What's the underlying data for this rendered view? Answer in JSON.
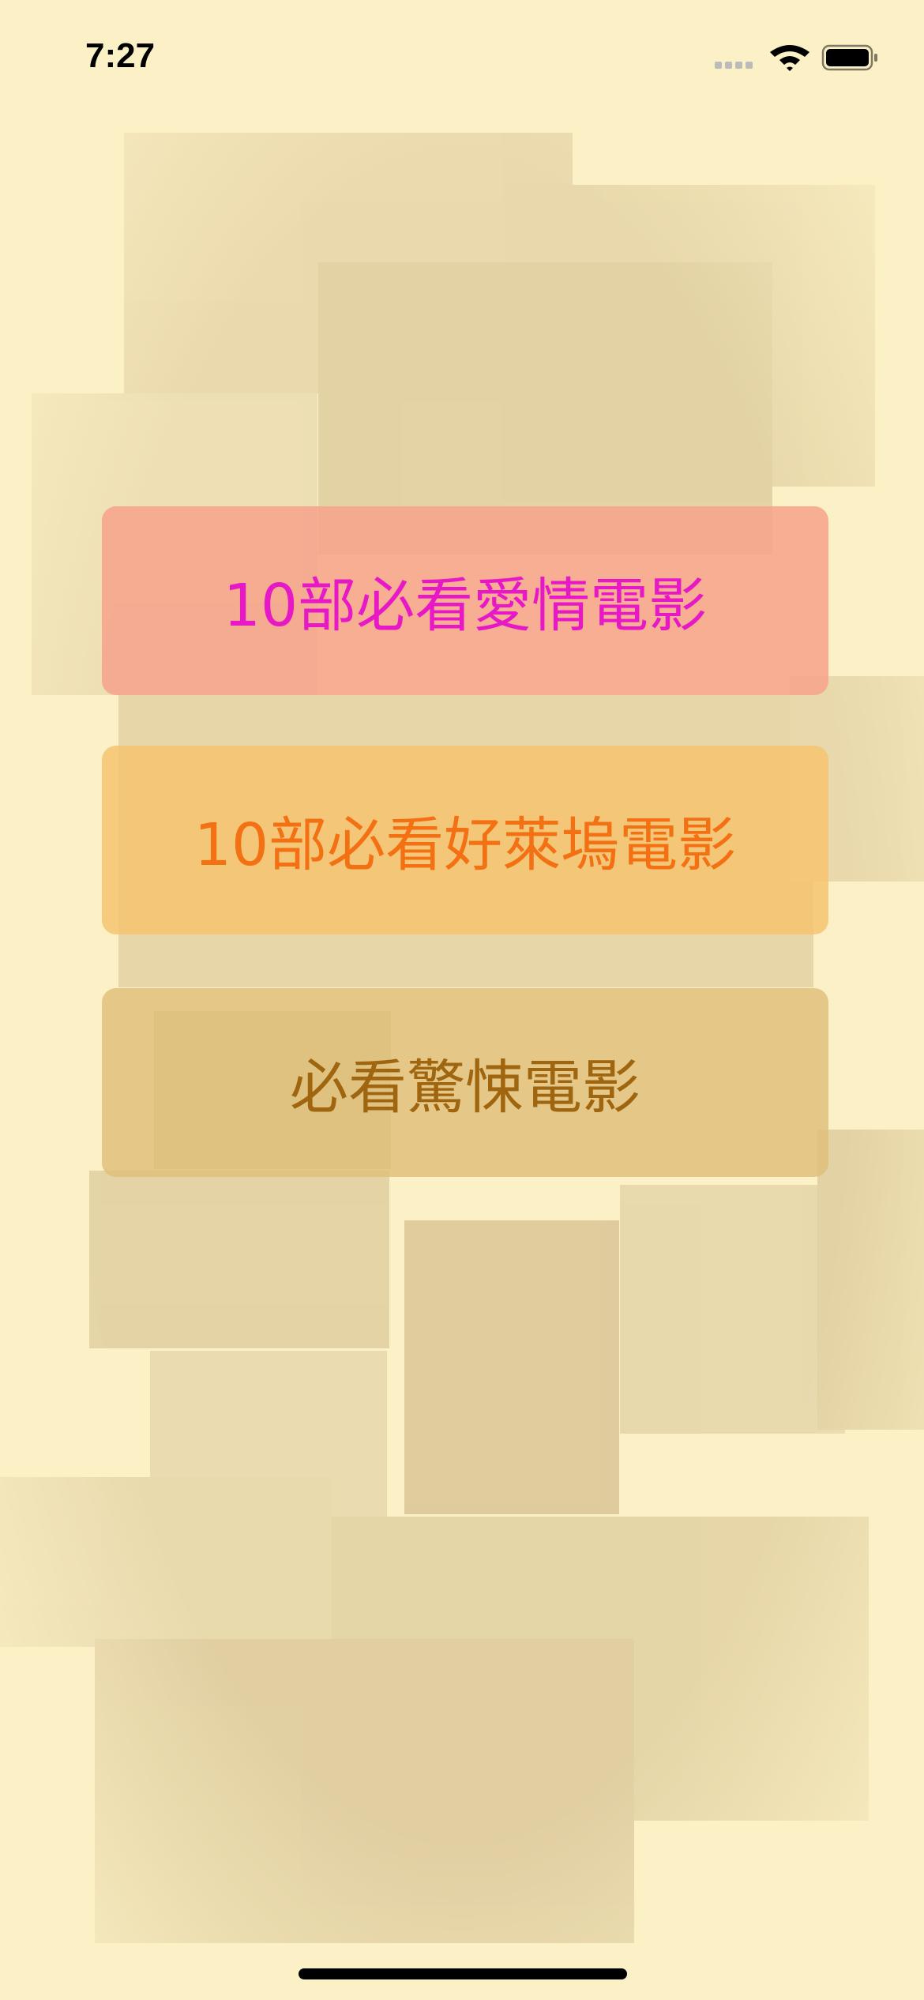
{
  "status_bar": {
    "time": "7:27"
  },
  "buttons": [
    {
      "label": "10部必看愛情電影"
    },
    {
      "label": "10部必看好萊塢電影"
    },
    {
      "label": "必看驚悚電影"
    }
  ]
}
